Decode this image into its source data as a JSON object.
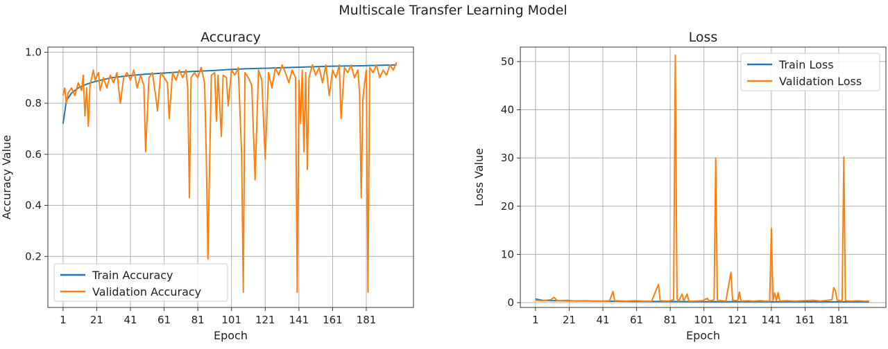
{
  "figure": {
    "suptitle": "Multiscale Transfer Learning Model"
  },
  "chart_data": [
    {
      "type": "line",
      "title": "Accuracy",
      "xlabel": "Epoch",
      "ylabel": "Accuracy Value",
      "xlim": [
        -8,
        209
      ],
      "ylim": [
        0.0,
        1.02
      ],
      "xticks": [
        1,
        21,
        41,
        61,
        81,
        101,
        121,
        141,
        161,
        181
      ],
      "yticks": [
        0.2,
        0.4,
        0.6,
        0.8,
        1.0
      ],
      "ytick_labels": [
        "0.2",
        "0.4",
        "0.6",
        "0.8",
        "1.0"
      ],
      "grid": true,
      "legend_position": "lower-left",
      "series": [
        {
          "name": "Train Accuracy",
          "color": "#1f77b4",
          "points": [
            [
              1,
              0.72
            ],
            [
              3,
              0.81
            ],
            [
              6,
              0.84
            ],
            [
              10,
              0.86
            ],
            [
              15,
              0.875
            ],
            [
              20,
              0.885
            ],
            [
              25,
              0.893
            ],
            [
              30,
              0.9
            ],
            [
              40,
              0.908
            ],
            [
              50,
              0.914
            ],
            [
              60,
              0.918
            ],
            [
              70,
              0.922
            ],
            [
              80,
              0.925
            ],
            [
              90,
              0.928
            ],
            [
              100,
              0.932
            ],
            [
              110,
              0.935
            ],
            [
              120,
              0.937
            ],
            [
              130,
              0.939
            ],
            [
              140,
              0.941
            ],
            [
              150,
              0.943
            ],
            [
              160,
              0.945
            ],
            [
              170,
              0.946
            ],
            [
              180,
              0.947
            ],
            [
              190,
              0.949
            ],
            [
              199,
              0.95
            ]
          ]
        },
        {
          "name": "Validation Accuracy",
          "color": "#ff7f0e",
          "points": [
            [
              1,
              0.83
            ],
            [
              2,
              0.86
            ],
            [
              3,
              0.8
            ],
            [
              4,
              0.84
            ],
            [
              6,
              0.86
            ],
            [
              8,
              0.83
            ],
            [
              10,
              0.88
            ],
            [
              12,
              0.85
            ],
            [
              13,
              0.91
            ],
            [
              14,
              0.75
            ],
            [
              15,
              0.86
            ],
            [
              16,
              0.71
            ],
            [
              17,
              0.87
            ],
            [
              19,
              0.93
            ],
            [
              20,
              0.89
            ],
            [
              22,
              0.92
            ],
            [
              23,
              0.85
            ],
            [
              25,
              0.9
            ],
            [
              27,
              0.86
            ],
            [
              29,
              0.91
            ],
            [
              31,
              0.88
            ],
            [
              33,
              0.92
            ],
            [
              35,
              0.8
            ],
            [
              37,
              0.9
            ],
            [
              39,
              0.92
            ],
            [
              41,
              0.89
            ],
            [
              43,
              0.93
            ],
            [
              45,
              0.86
            ],
            [
              47,
              0.91
            ],
            [
              49,
              0.87
            ],
            [
              50,
              0.61
            ],
            [
              52,
              0.9
            ],
            [
              54,
              0.92
            ],
            [
              56,
              0.83
            ],
            [
              57,
              0.77
            ],
            [
              59,
              0.92
            ],
            [
              61,
              0.9
            ],
            [
              63,
              0.88
            ],
            [
              64,
              0.74
            ],
            [
              66,
              0.92
            ],
            [
              68,
              0.89
            ],
            [
              70,
              0.93
            ],
            [
              72,
              0.9
            ],
            [
              74,
              0.93
            ],
            [
              75,
              0.86
            ],
            [
              76,
              0.43
            ],
            [
              77,
              0.9
            ],
            [
              79,
              0.92
            ],
            [
              81,
              0.9
            ],
            [
              83,
              0.94
            ],
            [
              85,
              0.88
            ],
            [
              86,
              0.6
            ],
            [
              87,
              0.19
            ],
            [
              88,
              0.55
            ],
            [
              89,
              0.91
            ],
            [
              91,
              0.92
            ],
            [
              92,
              0.73
            ],
            [
              93,
              0.91
            ],
            [
              95,
              0.67
            ],
            [
              96,
              0.91
            ],
            [
              98,
              0.9
            ],
            [
              99,
              0.79
            ],
            [
              101,
              0.93
            ],
            [
              103,
              0.91
            ],
            [
              105,
              0.94
            ],
            [
              107,
              0.6
            ],
            [
              108,
              0.06
            ],
            [
              109,
              0.92
            ],
            [
              111,
              0.9
            ],
            [
              113,
              0.87
            ],
            [
              115,
              0.5
            ],
            [
              117,
              0.93
            ],
            [
              119,
              0.89
            ],
            [
              121,
              0.58
            ],
            [
              123,
              0.92
            ],
            [
              125,
              0.86
            ],
            [
              127,
              0.94
            ],
            [
              129,
              0.91
            ],
            [
              131,
              0.95
            ],
            [
              133,
              0.92
            ],
            [
              135,
              0.88
            ],
            [
              137,
              0.93
            ],
            [
              139,
              0.9
            ],
            [
              140,
              0.06
            ],
            [
              141,
              0.89
            ],
            [
              142,
              0.72
            ],
            [
              143,
              0.93
            ],
            [
              144,
              0.61
            ],
            [
              145,
              0.92
            ],
            [
              146,
              0.54
            ],
            [
              147,
              0.9
            ],
            [
              149,
              0.95
            ],
            [
              151,
              0.91
            ],
            [
              153,
              0.94
            ],
            [
              155,
              0.88
            ],
            [
              157,
              0.95
            ],
            [
              159,
              0.83
            ],
            [
              161,
              0.93
            ],
            [
              163,
              0.9
            ],
            [
              165,
              0.95
            ],
            [
              166,
              0.74
            ],
            [
              168,
              0.94
            ],
            [
              170,
              0.92
            ],
            [
              172,
              0.95
            ],
            [
              174,
              0.9
            ],
            [
              176,
              0.93
            ],
            [
              177,
              0.84
            ],
            [
              178,
              0.43
            ],
            [
              179,
              0.82
            ],
            [
              180,
              0.88
            ],
            [
              181,
              0.93
            ],
            [
              182,
              0.06
            ],
            [
              183,
              0.94
            ],
            [
              185,
              0.92
            ],
            [
              187,
              0.95
            ],
            [
              189,
              0.9
            ],
            [
              191,
              0.93
            ],
            [
              193,
              0.91
            ],
            [
              195,
              0.95
            ],
            [
              197,
              0.93
            ],
            [
              199,
              0.96
            ]
          ]
        }
      ]
    },
    {
      "type": "line",
      "title": "Loss",
      "xlabel": "Epoch",
      "ylabel": "Loss Value",
      "xlim": [
        -8,
        209
      ],
      "ylim": [
        -1,
        53
      ],
      "xticks": [
        1,
        21,
        41,
        61,
        81,
        101,
        121,
        141,
        161,
        181
      ],
      "yticks": [
        0,
        10,
        20,
        30,
        40,
        50
      ],
      "ytick_labels": [
        "0",
        "10",
        "20",
        "30",
        "40",
        "50"
      ],
      "grid": true,
      "legend_position": "upper-right",
      "series": [
        {
          "name": "Train Loss",
          "color": "#1f77b4",
          "points": [
            [
              1,
              0.75
            ],
            [
              5,
              0.5
            ],
            [
              10,
              0.42
            ],
            [
              20,
              0.36
            ],
            [
              40,
              0.3
            ],
            [
              60,
              0.26
            ],
            [
              80,
              0.23
            ],
            [
              100,
              0.21
            ],
            [
              120,
              0.2
            ],
            [
              140,
              0.19
            ],
            [
              160,
              0.18
            ],
            [
              180,
              0.17
            ],
            [
              199,
              0.16
            ]
          ]
        },
        {
          "name": "Validation Loss",
          "color": "#ff7f0e",
          "points": [
            [
              1,
              0.5
            ],
            [
              5,
              0.4
            ],
            [
              10,
              0.6
            ],
            [
              12,
              1.1
            ],
            [
              14,
              0.4
            ],
            [
              20,
              0.5
            ],
            [
              25,
              0.3
            ],
            [
              30,
              0.4
            ],
            [
              35,
              0.3
            ],
            [
              40,
              0.3
            ],
            [
              45,
              0.4
            ],
            [
              47,
              2.3
            ],
            [
              48,
              0.4
            ],
            [
              55,
              0.3
            ],
            [
              60,
              0.4
            ],
            [
              65,
              0.3
            ],
            [
              70,
              0.3
            ],
            [
              74,
              3.8
            ],
            [
              75,
              0.4
            ],
            [
              80,
              0.3
            ],
            [
              83,
              0.6
            ],
            [
              84,
              51.3
            ],
            [
              85,
              0.8
            ],
            [
              86,
              0.3
            ],
            [
              88,
              1.8
            ],
            [
              89,
              0.4
            ],
            [
              91,
              1.8
            ],
            [
              92,
              0.3
            ],
            [
              95,
              0.3
            ],
            [
              100,
              0.4
            ],
            [
              103,
              0.9
            ],
            [
              104,
              0.3
            ],
            [
              107,
              0.6
            ],
            [
              108,
              30.0
            ],
            [
              109,
              0.4
            ],
            [
              111,
              0.4
            ],
            [
              114,
              0.3
            ],
            [
              117,
              6.3
            ],
            [
              118,
              0.5
            ],
            [
              121,
              0.4
            ],
            [
              122,
              2.2
            ],
            [
              123,
              0.3
            ],
            [
              127,
              0.4
            ],
            [
              130,
              0.3
            ],
            [
              134,
              0.4
            ],
            [
              138,
              0.3
            ],
            [
              140,
              0.3
            ],
            [
              141,
              15.4
            ],
            [
              142,
              0.5
            ],
            [
              143,
              2.0
            ],
            [
              144,
              0.4
            ],
            [
              145,
              2.1
            ],
            [
              146,
              0.3
            ],
            [
              150,
              0.4
            ],
            [
              155,
              0.3
            ],
            [
              160,
              0.4
            ],
            [
              166,
              0.5
            ],
            [
              170,
              0.3
            ],
            [
              177,
              0.6
            ],
            [
              178,
              3.1
            ],
            [
              179,
              2.5
            ],
            [
              180,
              0.5
            ],
            [
              183,
              0.3
            ],
            [
              184,
              30.2
            ],
            [
              185,
              0.4
            ],
            [
              188,
              0.3
            ],
            [
              192,
              0.4
            ],
            [
              196,
              0.3
            ],
            [
              199,
              0.3
            ]
          ]
        }
      ]
    }
  ]
}
